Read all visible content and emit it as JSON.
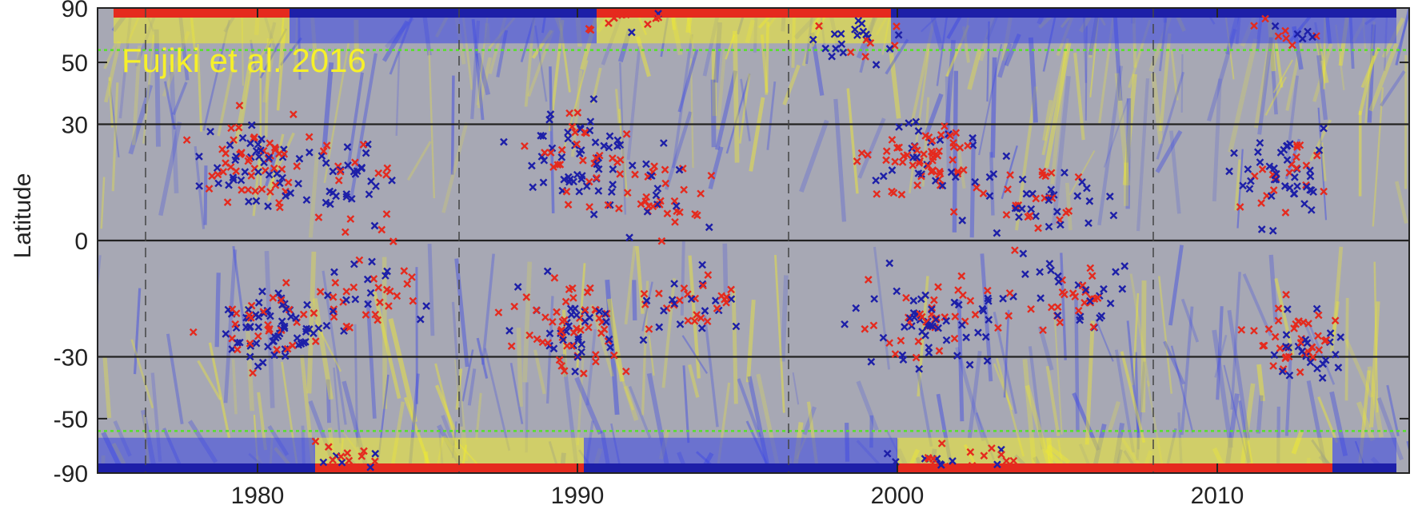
{
  "chart_data": {
    "type": "scatter",
    "title": "",
    "xlabel": "",
    "ylabel": "Latitude",
    "xlim": [
      1975,
      2016
    ],
    "ylim": [
      -90,
      90
    ],
    "x_ticks": [
      "1980",
      "1990",
      "2000",
      "2010"
    ],
    "x_tick_values": [
      1980,
      1990,
      2000,
      2010
    ],
    "y_ticks": [
      "90",
      "50",
      "30",
      "0",
      "-30",
      "-50",
      "-90"
    ],
    "y_tick_values": [
      90,
      50,
      30,
      0,
      -30,
      -50,
      -90
    ],
    "y_scale": "sine-latitude",
    "dashed_vertical_years": [
      1976.5,
      1986.3,
      1996.6,
      2008.0
    ],
    "solid_horizontal_latitudes": [
      30,
      0,
      -30
    ],
    "green_dotted_latitudes": [
      55,
      -55
    ],
    "annotation": "Fujiki et al. 2016",
    "colors": {
      "background": "#a7a8b4",
      "positive_polarity": "#e52a1e",
      "negative_polarity": "#1d1fa8",
      "field_positive": "#f2ec2c",
      "field_negative": "#3a46e6",
      "annotation": "#f6f02a",
      "green_line": "#57e02a",
      "axis": "#222222"
    },
    "series": [],
    "polar_bands": [
      {
        "hemisphere": "north",
        "from": 1975.5,
        "to": 1981.0,
        "polarity": "positive"
      },
      {
        "hemisphere": "north",
        "from": 1981.0,
        "to": 1990.6,
        "polarity": "negative"
      },
      {
        "hemisphere": "north",
        "from": 1990.6,
        "to": 1999.8,
        "polarity": "positive"
      },
      {
        "hemisphere": "north",
        "from": 1999.8,
        "to": 2015.6,
        "polarity": "negative"
      },
      {
        "hemisphere": "south",
        "from": 1975.0,
        "to": 1981.8,
        "polarity": "negative"
      },
      {
        "hemisphere": "south",
        "from": 1981.8,
        "to": 1990.2,
        "polarity": "positive"
      },
      {
        "hemisphere": "south",
        "from": 1990.2,
        "to": 2000.0,
        "polarity": "negative"
      },
      {
        "hemisphere": "south",
        "from": 2000.0,
        "to": 2013.6,
        "polarity": "positive"
      },
      {
        "hemisphere": "south",
        "from": 2013.6,
        "to": 2015.6,
        "polarity": "negative"
      }
    ],
    "marker_clusters": [
      {
        "x": 1980.0,
        "y": 20,
        "sx": 1.8,
        "sy": 12,
        "n": 90,
        "red": 0.55
      },
      {
        "x": 1983.0,
        "y": 15,
        "sx": 1.5,
        "sy": 12,
        "n": 40,
        "red": 0.4
      },
      {
        "x": 1980.5,
        "y": -22,
        "sx": 1.8,
        "sy": 12,
        "n": 90,
        "red": 0.35
      },
      {
        "x": 1983.5,
        "y": -10,
        "sx": 1.5,
        "sy": 12,
        "n": 40,
        "red": 0.5
      },
      {
        "x": 1990.0,
        "y": 20,
        "sx": 1.8,
        "sy": 14,
        "n": 80,
        "red": 0.3
      },
      {
        "x": 1992.5,
        "y": 12,
        "sx": 1.8,
        "sy": 10,
        "n": 40,
        "red": 0.6
      },
      {
        "x": 1989.8,
        "y": -22,
        "sx": 1.8,
        "sy": 12,
        "n": 80,
        "red": 0.6
      },
      {
        "x": 1993.5,
        "y": -15,
        "sx": 1.8,
        "sy": 10,
        "n": 40,
        "red": 0.5
      },
      {
        "x": 2001.0,
        "y": 20,
        "sx": 2.0,
        "sy": 12,
        "n": 80,
        "red": 0.6
      },
      {
        "x": 2004.5,
        "y": 10,
        "sx": 2.0,
        "sy": 10,
        "n": 50,
        "red": 0.4
      },
      {
        "x": 2001.0,
        "y": -20,
        "sx": 2.0,
        "sy": 12,
        "n": 80,
        "red": 0.45
      },
      {
        "x": 2005.5,
        "y": -15,
        "sx": 2.0,
        "sy": 10,
        "n": 50,
        "red": 0.5
      },
      {
        "x": 2012.0,
        "y": 18,
        "sx": 1.5,
        "sy": 12,
        "n": 60,
        "red": 0.35
      },
      {
        "x": 2012.5,
        "y": -25,
        "sx": 1.5,
        "sy": 12,
        "n": 60,
        "red": 0.6
      },
      {
        "x": 1999.0,
        "y": 60,
        "sx": 2.0,
        "sy": 12,
        "n": 25,
        "red": 0.2
      },
      {
        "x": 1991.5,
        "y": 70,
        "sx": 1.2,
        "sy": 10,
        "n": 15,
        "red": 0.7
      },
      {
        "x": 2002.0,
        "y": -70,
        "sx": 2.0,
        "sy": 10,
        "n": 25,
        "red": 0.7
      },
      {
        "x": 1983.0,
        "y": -68,
        "sx": 1.5,
        "sy": 10,
        "n": 15,
        "red": 0.6
      },
      {
        "x": 2012.0,
        "y": 65,
        "sx": 1.5,
        "sy": 10,
        "n": 12,
        "red": 0.6
      }
    ]
  }
}
